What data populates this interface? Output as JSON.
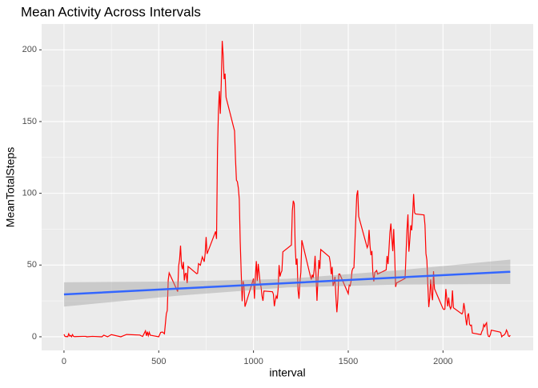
{
  "chart_data": {
    "type": "line",
    "title": "Mean Activity Across Intervals",
    "x_label": "interval",
    "y_label": "MeanTotalSteps",
    "xlim": [
      -118,
      2476
    ],
    "ylim": [
      -9.5,
      218
    ],
    "xticks": [
      0,
      500,
      1000,
      1500,
      2000
    ],
    "yticks": [
      0,
      50,
      100,
      150,
      200
    ],
    "x_minor_ticks": [
      250,
      750,
      1250,
      1750,
      2250
    ],
    "y_minor_ticks": [
      25,
      75,
      125,
      175
    ],
    "grid": true,
    "series": [
      {
        "color": "#ff0000",
        "x": [
          0,
          5,
          10,
          15,
          20,
          25,
          30,
          35,
          40,
          45,
          50,
          55,
          100,
          115,
          120,
          150,
          200,
          210,
          230,
          250,
          300,
          330,
          400,
          415,
          430,
          435,
          440,
          445,
          450,
          455,
          500,
          510,
          520,
          530,
          540,
          545,
          550,
          555,
          600,
          605,
          610,
          615,
          620,
          625,
          630,
          635,
          640,
          645,
          650,
          655,
          700,
          705,
          710,
          715,
          720,
          725,
          730,
          735,
          740,
          745,
          750,
          755,
          800,
          805,
          810,
          815,
          820,
          825,
          830,
          835,
          840,
          845,
          850,
          855,
          900,
          905,
          910,
          915,
          920,
          925,
          930,
          935,
          940,
          945,
          950,
          955,
          1000,
          1005,
          1010,
          1015,
          1020,
          1025,
          1030,
          1035,
          1040,
          1045,
          1050,
          1055,
          1100,
          1105,
          1110,
          1115,
          1120,
          1125,
          1130,
          1135,
          1140,
          1145,
          1150,
          1155,
          1200,
          1205,
          1210,
          1215,
          1220,
          1225,
          1230,
          1235,
          1240,
          1245,
          1250,
          1255,
          1300,
          1305,
          1310,
          1315,
          1320,
          1325,
          1330,
          1335,
          1340,
          1345,
          1350,
          1355,
          1400,
          1405,
          1410,
          1415,
          1420,
          1425,
          1430,
          1435,
          1440,
          1445,
          1450,
          1455,
          1500,
          1505,
          1510,
          1515,
          1520,
          1525,
          1530,
          1535,
          1540,
          1545,
          1550,
          1555,
          1600,
          1605,
          1610,
          1615,
          1620,
          1625,
          1630,
          1635,
          1640,
          1645,
          1650,
          1655,
          1700,
          1705,
          1710,
          1715,
          1720,
          1725,
          1730,
          1735,
          1740,
          1745,
          1750,
          1755,
          1800,
          1805,
          1810,
          1815,
          1820,
          1825,
          1830,
          1835,
          1840,
          1845,
          1850,
          1855,
          1900,
          1905,
          1910,
          1915,
          1920,
          1925,
          1930,
          1935,
          1940,
          1945,
          1950,
          1955,
          2000,
          2005,
          2010,
          2015,
          2020,
          2025,
          2030,
          2035,
          2040,
          2045,
          2050,
          2055,
          2100,
          2105,
          2110,
          2115,
          2120,
          2125,
          2130,
          2135,
          2140,
          2145,
          2150,
          2155,
          2200,
          2205,
          2210,
          2215,
          2220,
          2225,
          2230,
          2235,
          2240,
          2245,
          2250,
          2255,
          2300,
          2305,
          2310,
          2315,
          2320,
          2325,
          2330,
          2335,
          2340,
          2345,
          2350,
          2355
        ],
        "values": [
          1.7,
          0.3,
          0.1,
          0.2,
          0.1,
          2.1,
          0.5,
          0.9,
          0,
          1.5,
          0.3,
          0.1,
          0.3,
          0.3,
          0,
          0.3,
          0,
          1.1,
          0,
          1.5,
          0,
          1.6,
          1.2,
          0.2,
          4.1,
          0.7,
          3.5,
          0.8,
          3.1,
          1.1,
          0,
          3,
          3.3,
          2.1,
          16,
          18.3,
          39.5,
          44.5,
          31.5,
          49.3,
          53.8,
          63.5,
          50,
          47.1,
          52.2,
          39.3,
          44,
          44.2,
          37.4,
          49,
          44,
          44.2,
          51,
          50.5,
          49.9,
          53,
          55.7,
          54,
          52.3,
          58,
          69.5,
          57.8,
          73.4,
          68.2,
          129.4,
          157.5,
          171.2,
          155.4,
          177.3,
          206.2,
          195.9,
          179.6,
          183.4,
          167,
          143.5,
          124,
          109.1,
          108.1,
          103.7,
          95.95,
          66.2,
          45.2,
          24.8,
          38.8,
          34.98,
          21,
          40.6,
          26.5,
          42.4,
          52.7,
          38.9,
          50.8,
          44.3,
          37.4,
          34.7,
          28.3,
          25.1,
          31.9,
          31.4,
          29.7,
          21.3,
          25.5,
          28.4,
          26.5,
          33.4,
          50,
          42,
          44.6,
          46,
          59.2,
          63.9,
          87.7,
          94.8,
          92.8,
          63.4,
          50.2,
          54.5,
          32.4,
          26.5,
          37.7,
          45.1,
          67.3,
          42.3,
          39.9,
          43.3,
          40.98,
          46.2,
          56.4,
          42.8,
          25.1,
          39.96,
          53.5,
          47.3,
          60.8,
          55.8,
          51.96,
          43.6,
          48.7,
          35.5,
          37.5,
          41.8,
          27.5,
          17.1,
          26.1,
          43.7,
          43.8,
          30,
          36.1,
          35.5,
          38.8,
          45.96,
          47.75,
          48.1,
          65.3,
          82.9,
          98.7,
          102.1,
          83.96,
          62.1,
          64.1,
          74.5,
          63.2,
          56.9,
          59.8,
          43.9,
          38.6,
          44.7,
          45.5,
          46.2,
          43.7,
          46.6,
          56.3,
          50.7,
          61.2,
          72.7,
          78.9,
          68.9,
          59.7,
          75.1,
          56.5,
          34.8,
          37.5,
          40.7,
          58,
          74.7,
          85.3,
          59.3,
          67.8,
          77.7,
          74.2,
          85.3,
          99.5,
          86.6,
          85.6,
          84.9,
          77.8,
          58,
          53.4,
          36.3,
          20.7,
          27.4,
          40,
          30.2,
          25.5,
          45.7,
          33.5,
          19.6,
          19,
          19.3,
          33.3,
          26.8,
          21.2,
          27.3,
          21.3,
          19.5,
          21.3,
          32.3,
          20.2,
          15.9,
          17.2,
          23.5,
          19.2,
          12.5,
          8,
          14.7,
          16.3,
          8.7,
          7.8,
          8.1,
          2.6,
          1.5,
          3.7,
          4.8,
          8.5,
          7.1,
          8.7,
          9.75,
          2.2,
          0.3,
          0.1,
          1.6,
          4.6,
          3.3,
          2.8,
          0,
          0.8,
          0.96,
          1.6,
          2.6,
          4.7,
          3.3,
          0.6,
          0.2,
          1.1
        ]
      }
    ],
    "smooth": {
      "color": "#3366ff",
      "band_color": "#999999",
      "x": [
        0,
        590,
        1180,
        1770,
        2355
      ],
      "values": [
        29.5,
        33.5,
        37.4,
        41.4,
        45.3
      ],
      "lower": [
        21,
        28.5,
        34.4,
        36.4,
        36.8
      ],
      "upper": [
        38,
        38.5,
        40.4,
        46.4,
        53.8
      ]
    }
  }
}
